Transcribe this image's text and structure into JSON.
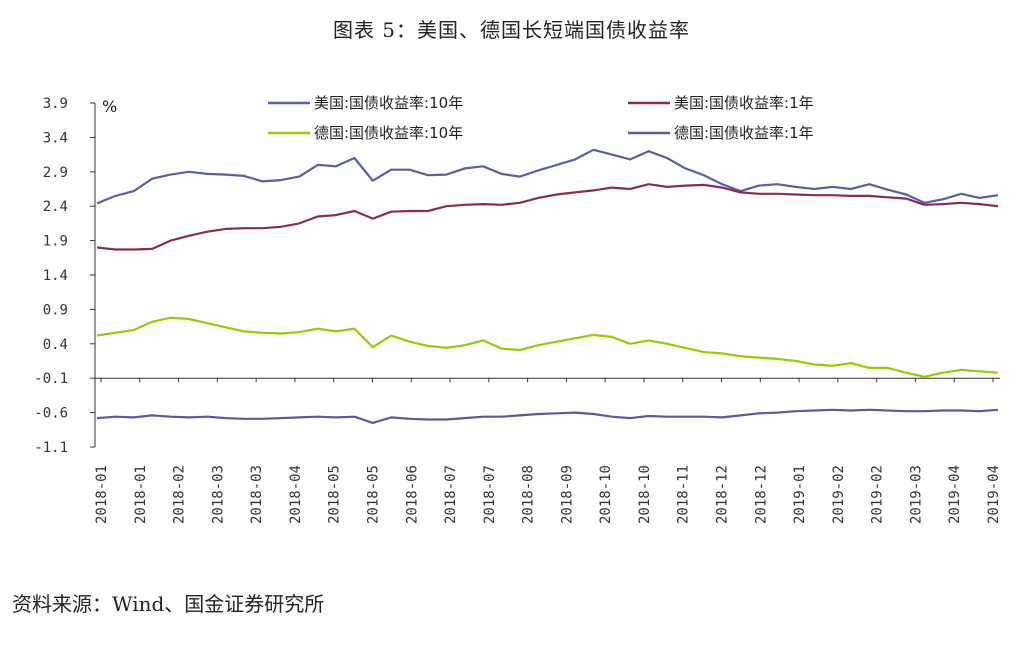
{
  "title": "图表 5：美国、德国长短端国债收益率",
  "source": "资料来源：Wind、国金证券研究所",
  "chart_data": {
    "type": "line",
    "unit": "%",
    "ylim": [
      -1.1,
      3.9
    ],
    "yticks": [
      "3.9",
      "3.4",
      "2.9",
      "2.4",
      "1.9",
      "1.4",
      "0.9",
      "0.4",
      "-0.1",
      "-0.6",
      "-1.1"
    ],
    "xticks": [
      "2018-01",
      "2018-01",
      "2018-02",
      "2018-03",
      "2018-03",
      "2018-04",
      "2018-05",
      "2018-05",
      "2018-06",
      "2018-07",
      "2018-07",
      "2018-08",
      "2018-09",
      "2018-10",
      "2018-10",
      "2018-11",
      "2018-12",
      "2018-12",
      "2019-01",
      "2019-02",
      "2019-02",
      "2019-03",
      "2019-04",
      "2019-04"
    ],
    "legend_position": "top",
    "grid": false,
    "series": [
      {
        "name": "美国:国债收益率:10年",
        "color": "#5b5fa3",
        "values": [
          2.44,
          2.55,
          2.62,
          2.8,
          2.86,
          2.9,
          2.87,
          2.86,
          2.84,
          2.76,
          2.78,
          2.83,
          3.0,
          2.98,
          3.1,
          2.77,
          2.93,
          2.93,
          2.85,
          2.86,
          2.95,
          2.98,
          2.87,
          2.83,
          2.92,
          3.0,
          3.08,
          3.22,
          3.15,
          3.08,
          3.2,
          3.1,
          2.95,
          2.85,
          2.72,
          2.62,
          2.7,
          2.72,
          2.68,
          2.65,
          2.68,
          2.65,
          2.72,
          2.64,
          2.57,
          2.45,
          2.5,
          2.58,
          2.52,
          2.56
        ]
      },
      {
        "name": "美国:国债收益率:1年",
        "color": "#8b2c55",
        "values": [
          1.8,
          1.77,
          1.77,
          1.78,
          1.9,
          1.97,
          2.03,
          2.07,
          2.08,
          2.08,
          2.1,
          2.15,
          2.25,
          2.27,
          2.33,
          2.22,
          2.32,
          2.33,
          2.33,
          2.4,
          2.42,
          2.43,
          2.42,
          2.45,
          2.52,
          2.57,
          2.6,
          2.63,
          2.67,
          2.65,
          2.72,
          2.68,
          2.7,
          2.71,
          2.67,
          2.6,
          2.58,
          2.58,
          2.57,
          2.56,
          2.56,
          2.55,
          2.55,
          2.53,
          2.51,
          2.42,
          2.43,
          2.45,
          2.43,
          2.4
        ]
      },
      {
        "name": "德国:国债收益率:10年",
        "color": "#99cc00",
        "values": [
          0.52,
          0.56,
          0.6,
          0.72,
          0.78,
          0.76,
          0.7,
          0.64,
          0.58,
          0.56,
          0.55,
          0.57,
          0.62,
          0.58,
          0.62,
          0.35,
          0.52,
          0.43,
          0.37,
          0.34,
          0.38,
          0.45,
          0.33,
          0.31,
          0.38,
          0.43,
          0.48,
          0.53,
          0.5,
          0.4,
          0.45,
          0.4,
          0.34,
          0.28,
          0.26,
          0.22,
          0.2,
          0.18,
          0.15,
          0.1,
          0.08,
          0.12,
          0.05,
          0.05,
          -0.02,
          -0.08,
          -0.02,
          0.02,
          0.0,
          -0.02
        ]
      },
      {
        "name": "德国:国债收益率:1年",
        "color": "#5a5a9e",
        "values": [
          -0.68,
          -0.66,
          -0.67,
          -0.64,
          -0.66,
          -0.67,
          -0.66,
          -0.68,
          -0.69,
          -0.69,
          -0.68,
          -0.67,
          -0.66,
          -0.67,
          -0.66,
          -0.75,
          -0.67,
          -0.69,
          -0.7,
          -0.7,
          -0.68,
          -0.66,
          -0.66,
          -0.64,
          -0.62,
          -0.61,
          -0.6,
          -0.62,
          -0.66,
          -0.68,
          -0.65,
          -0.66,
          -0.66,
          -0.66,
          -0.67,
          -0.64,
          -0.61,
          -0.6,
          -0.58,
          -0.57,
          -0.56,
          -0.57,
          -0.56,
          -0.57,
          -0.58,
          -0.58,
          -0.57,
          -0.57,
          -0.58,
          -0.56
        ]
      }
    ]
  }
}
